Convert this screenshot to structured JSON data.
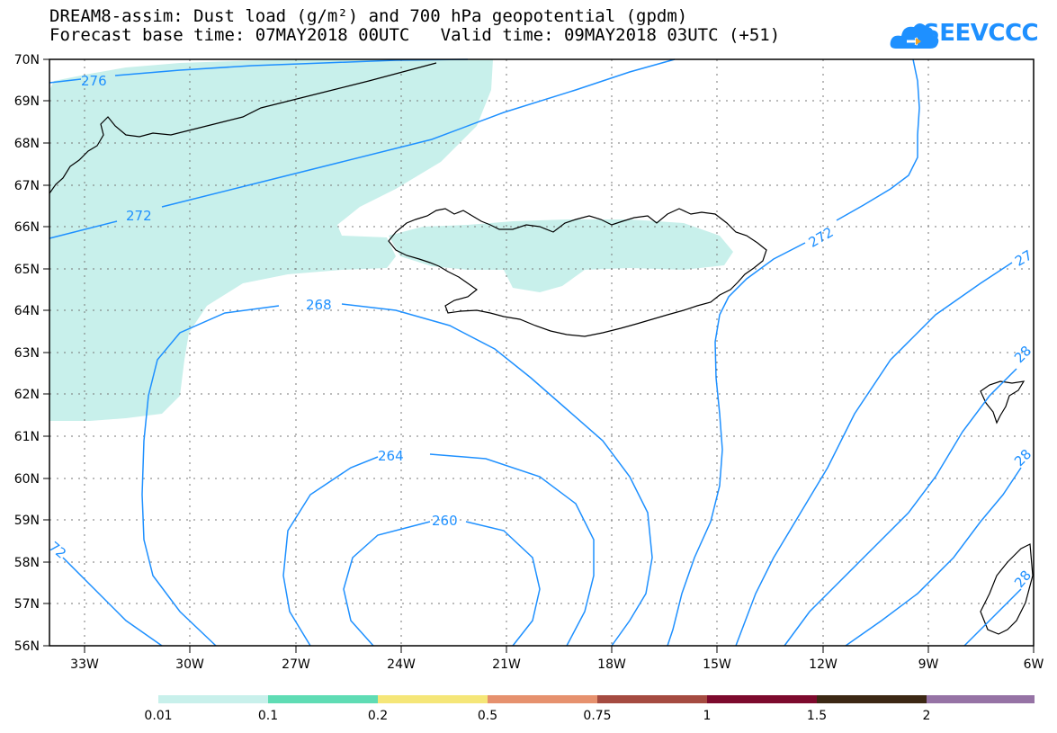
{
  "header": {
    "title_line1": "DREAM8-assim: Dust load (g/m²) and 700 hPa geopotential (gpdm)",
    "title_line2": "Forecast base time: 07MAY2018 00UTC   Valid time: 09MAY2018 03UTC (+51)"
  },
  "logo": {
    "text": "SEEVCCC",
    "icon": "cloud-logo-icon",
    "color": "#1e90ff"
  },
  "map": {
    "lat_labels": [
      "70N",
      "69N",
      "68N",
      "67N",
      "66N",
      "65N",
      "64N",
      "63N",
      "62N",
      "61N",
      "60N",
      "59N",
      "58N",
      "57N",
      "56N"
    ],
    "lon_labels": [
      "33W",
      "30W",
      "27W",
      "24W",
      "21W",
      "18W",
      "15W",
      "12W",
      "9W",
      "6W"
    ],
    "dust_color": "#c8f0eb",
    "contour_color": "#1e90ff",
    "contour_labels": [
      {
        "text": "276"
      },
      {
        "text": "272"
      },
      {
        "text": "268"
      },
      {
        "text": "272"
      },
      {
        "text": "264"
      },
      {
        "text": "260"
      },
      {
        "text": "72"
      },
      {
        "text": "27"
      },
      {
        "text": "28"
      },
      {
        "text": "28"
      },
      {
        "text": "28"
      }
    ]
  },
  "colorbar": {
    "colors": [
      "#c8f0eb",
      "#5fdcb4",
      "#f5e678",
      "#e6916e",
      "#a54b41",
      "#7d0a2d",
      "#3c2814",
      "#9673a5"
    ],
    "tick_labels": [
      "0.01",
      "0.1",
      "0.2",
      "0.5",
      "0.75",
      "1",
      "1.5",
      "2"
    ]
  }
}
